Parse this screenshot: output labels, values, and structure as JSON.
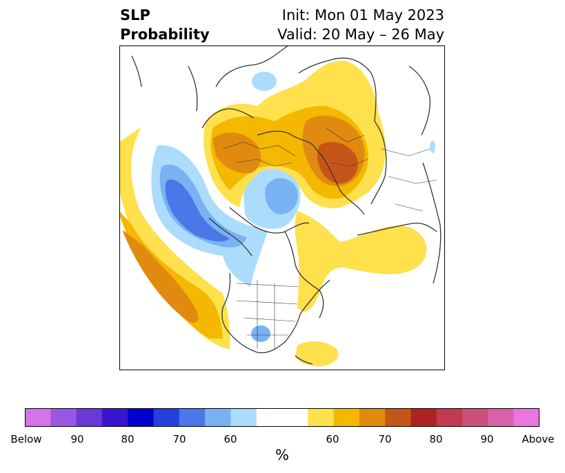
{
  "header": {
    "title_line1": "SLP",
    "title_line2": "Probability",
    "init": "Init: Mon 01 May 2023",
    "valid": "Valid: 20 May – 26 May"
  },
  "colorbar": {
    "colors": [
      "#d673e8",
      "#9c57e2",
      "#6a38d9",
      "#3a15d1",
      "#0000cc",
      "#2540dd",
      "#4a78e8",
      "#78b2f2",
      "#acdcfb",
      "#ffffff",
      "#ffe04d",
      "#f4b800",
      "#e08b10",
      "#c65618",
      "#b02124",
      "#c23a50",
      "#cc4f7e",
      "#d962aa",
      "#e878dd"
    ],
    "ticks": [
      "Below",
      "90",
      "80",
      "70",
      "60",
      "60",
      "70",
      "80",
      "90",
      "Above"
    ],
    "unit": "%"
  },
  "map_colors": {
    "blue_light": "#acdcfb",
    "blue_mid": "#78b2f2",
    "blue_dark": "#4a78e8",
    "yellow": "#ffe04d",
    "gold": "#f4b800",
    "orange": "#e08b10",
    "dark_orange": "#c65618",
    "coast": "#333333"
  }
}
